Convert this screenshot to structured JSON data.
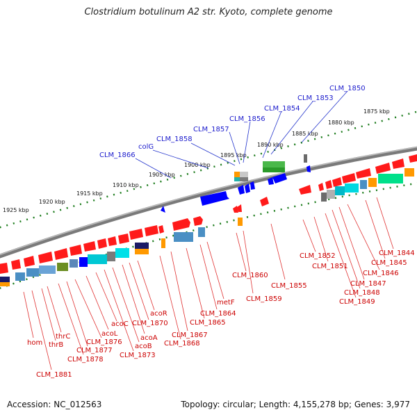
{
  "title": "Clostridium botulinum A2 str. Kyoto, complete genome",
  "footer": {
    "accession": "Accession: NC_012563",
    "info": "Topology: circular; Length: 4,155,278 bp; Genes: 3,977"
  },
  "scale_labels": [
    "1925 kbp",
    "1920 kbp",
    "1915 kbp",
    "1910 kbp",
    "1905 kbp",
    "1900 kbp",
    "1895 kbp",
    "1890 kbp",
    "1885 kbp",
    "1880 kbp",
    "1875 kbp"
  ],
  "top_labels": [
    "CLM_1866",
    "colG",
    "CLM_1858",
    "CLM_1857",
    "CLM_1856",
    "CLM_1854",
    "CLM_1853",
    "CLM_1850"
  ],
  "bottom_labels": [
    "hom",
    "CLM_1881",
    "thrB",
    "thrC",
    "CLM_1878",
    "CLM_1877",
    "CLM_1876",
    "acoL",
    "acoC",
    "CLM_1873",
    "acoB",
    "acoA",
    "CLM_1870",
    "acoR",
    "CLM_1868",
    "CLM_1867",
    "CLM_1865",
    "CLM_1864",
    "metF",
    "CLM_1860",
    "CLM_1859",
    "CLM_1855",
    "CLM_1852",
    "CLM_1851",
    "CLM_1849",
    "CLM_1848",
    "CLM_1847",
    "CLM_1846",
    "CLM_1845",
    "CLM_1844"
  ],
  "colors": {
    "backbone": "#7a7a7a",
    "ticks": "#1e7d1e",
    "forward_gene": "#ff1a1a",
    "blue_gene": "#0000ff",
    "label_blue": "#1a1acc",
    "label_red": "#cc0000"
  }
}
